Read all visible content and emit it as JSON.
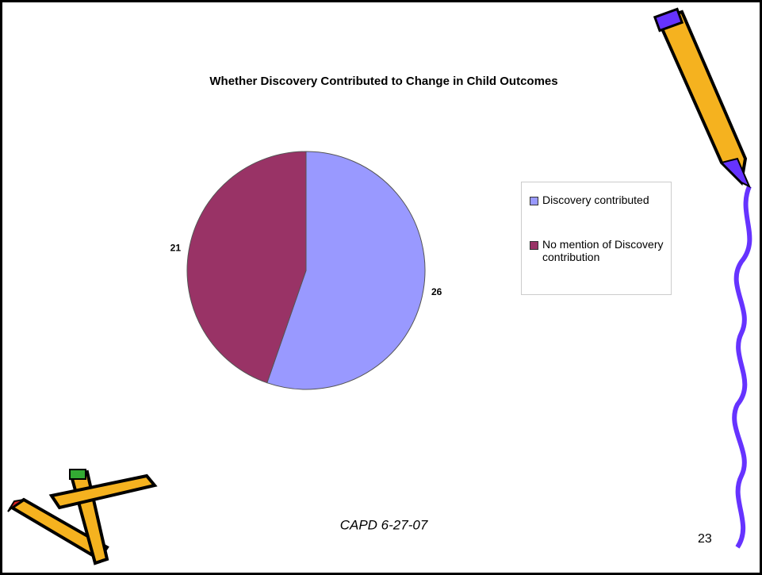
{
  "chart_data": {
    "type": "pie",
    "title": "Whether Discovery Contributed to Change in Child Outcomes",
    "categories": [
      "Discovery contributed",
      "No mention of Discovery contribution"
    ],
    "values": [
      26,
      21
    ],
    "colors": [
      "#9999ff",
      "#993366"
    ],
    "legend": "right"
  },
  "slide": {
    "footer": "CAPD 6-27-07",
    "page_number": "23"
  }
}
